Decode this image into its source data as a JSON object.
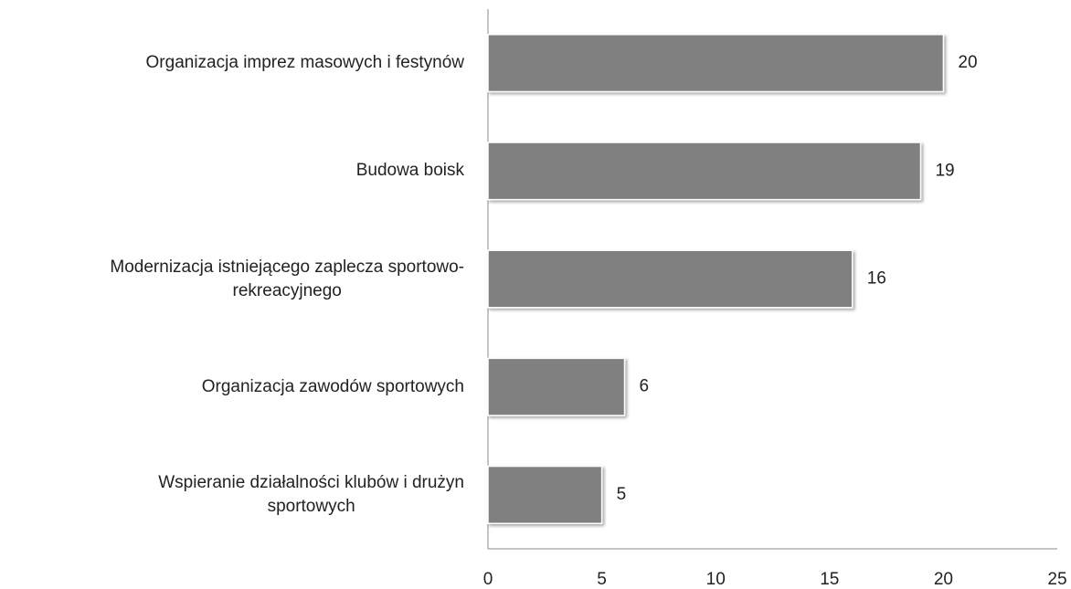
{
  "chart_data": {
    "type": "barh",
    "categories": [
      "Organizacja imprez masowych i festynów",
      "Budowa boisk",
      "Modernizacja istniejącego zaplecza sportowo-\nrekreacyjnego",
      "Organizacja zawodów sportowych",
      "Wspieranie działalności klubów i drużyn\nsportowych"
    ],
    "values": [
      20,
      19,
      16,
      6,
      5
    ],
    "color": "#808080",
    "xlim": [
      0,
      25
    ],
    "xticks": [
      0,
      5,
      10,
      15,
      20,
      25
    ],
    "grid": false
  }
}
